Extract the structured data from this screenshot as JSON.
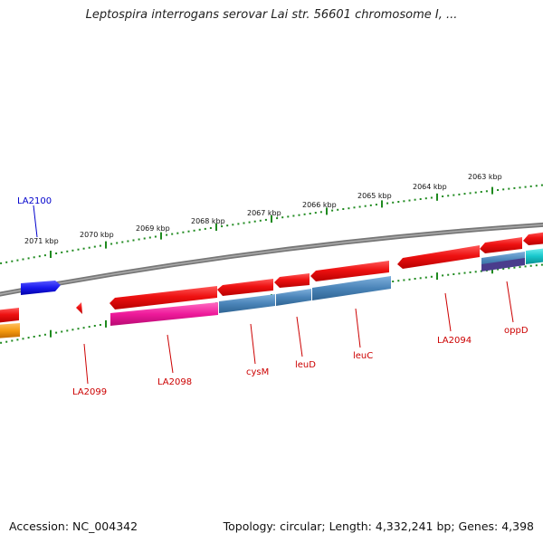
{
  "title": "Leptospira interrogans serovar Lai str. 56601 chromosome I, ...",
  "footer": {
    "accession": "Accession: NC_004342",
    "topology": "Topology: circular; Length: 4,332,241 bp; Genes: 4,398"
  },
  "kbp_labels": [
    "2071 kbp",
    "2070 kbp",
    "2069 kbp",
    "2068 kbp",
    "2067 kbp",
    "2066 kbp",
    "2065 kbp",
    "2064 kbp",
    "2063 kbp"
  ],
  "gene_labels": [
    "LA2100",
    "LA2099",
    "LA2098",
    "cysM",
    "leuD",
    "leuC",
    "LA2094",
    "oppD"
  ],
  "colors": {
    "gene_red": "#ee1111",
    "gene_blue_strand": "#1a1aee",
    "gene_steelblue": "#4a84b8",
    "gene_magenta": "#ee1a9a",
    "gene_orange": "#f59a10",
    "gene_cyan": "#18c8cc",
    "gene_purple": "#4a3c8c",
    "tick_green": "#1f8a1f",
    "backbone": "#888888",
    "label_red": "#cc0000",
    "label_blue": "#0000cc"
  }
}
